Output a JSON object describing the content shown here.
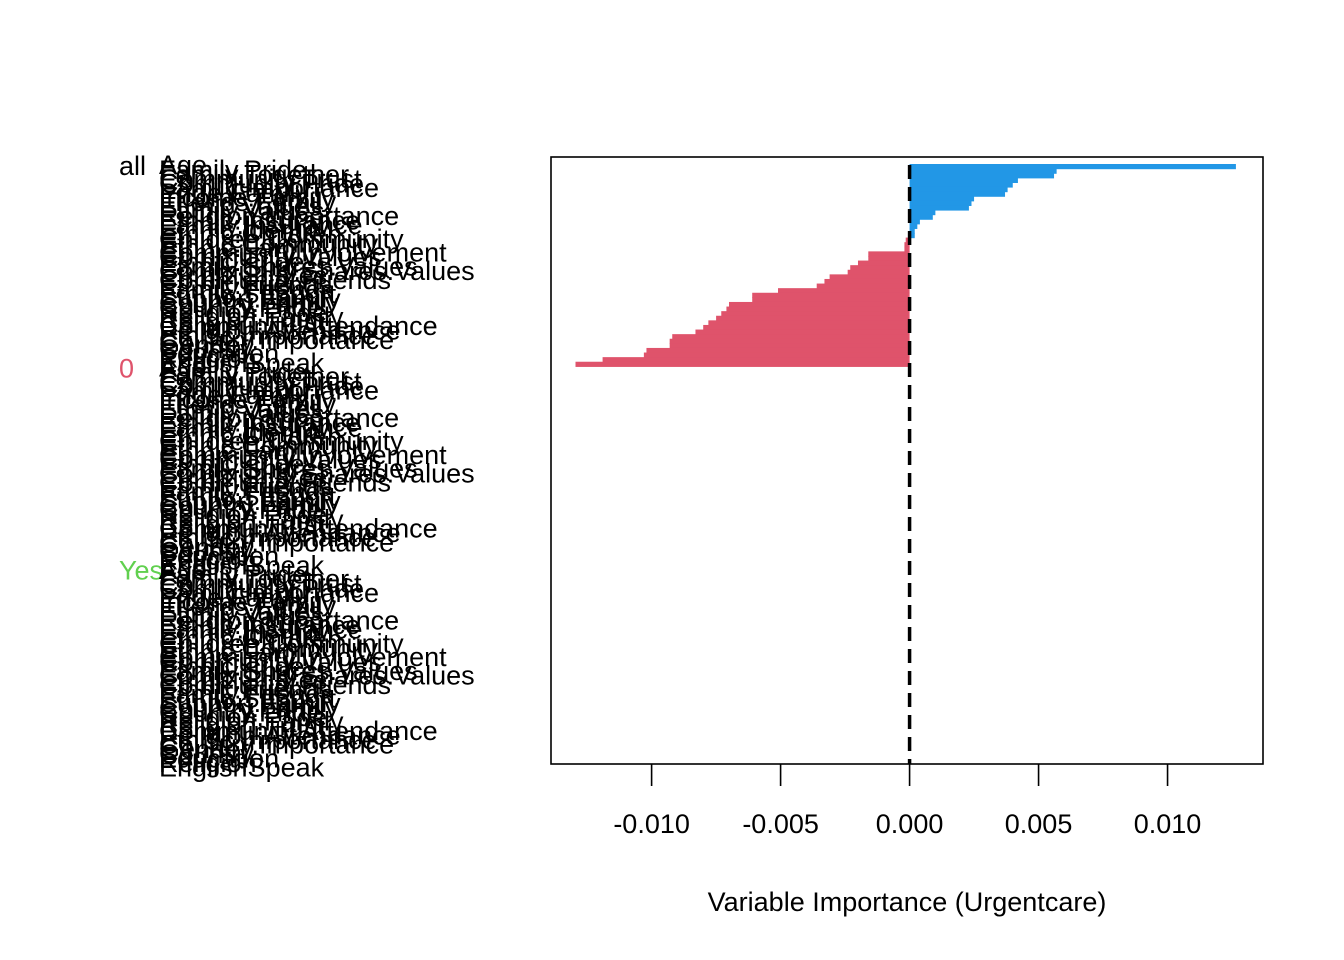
{
  "chart_data": {
    "type": "bar",
    "orientation": "horizontal",
    "xlabel": "Variable Importance (Urgentcare)",
    "xlim": [
      -0.0139,
      0.0137
    ],
    "xticks": [
      -0.01,
      -0.005,
      0.0,
      0.005,
      0.01
    ],
    "xtick_labels": [
      "-0.010",
      "-0.005",
      "0.000",
      "0.005",
      "0.010"
    ],
    "reference_line": 0.0,
    "colors": {
      "positive": "#2297E6",
      "negative": "#DF536B",
      "group_all": "#000000",
      "group_0": "#DF536B",
      "group_yes": "#61D04F",
      "refline": "#000000"
    },
    "variables": [
      "Age",
      "Family.Pride",
      "Family.Together",
      "Community.Trust",
      "Community.Pride",
      "Family.Importance",
      "Pride.Family",
      "Income.Family",
      "Friends.Family",
      "Ethnic.Values",
      "Family.Values",
      "Religion.Importance",
      "Ethnic.Insurance",
      "Family.Insurance",
      "Ethnic.Identity",
      "Ethnic.Children",
      "Children.Community",
      "Ethnic.Community",
      "Ethnic.Family",
      "Community.Involvement",
      "Community.Values",
      "Ethnic.Pride",
      "Family.Shares.Values",
      "Community.Shares.Values",
      "Ethnic.Shares",
      "Community.Friends",
      "Ethnic.Friends",
      "Family.Friends",
      "Ethnic.Support",
      "Support.Family",
      "Country.Family",
      "Country.Pride",
      "Religion.Pride",
      "Religion.Family",
      "Religion.Trust",
      "Community.Attendance",
      "Religion.Attendance",
      "Ethnic.Importance",
      "Country.Importance",
      "Gender",
      "Country",
      "Education",
      "Religion",
      "EnglishSpeak"
    ],
    "groups": [
      {
        "name": "all",
        "values": [
          0.01265,
          0.0057,
          0.0056,
          0.0042,
          0.004,
          0.0038,
          0.0037,
          0.0025,
          0.0024,
          0.0023,
          0.001,
          0.0009,
          0.0004,
          0.0003,
          0.0002,
          0.0002,
          -0.00015,
          -0.0002,
          -0.0002,
          -0.0016,
          -0.0016,
          -0.002,
          -0.0023,
          -0.0024,
          -0.0031,
          -0.0033,
          -0.0036,
          -0.0051,
          -0.0061,
          -0.0061,
          -0.007,
          -0.0071,
          -0.0073,
          -0.0075,
          -0.0078,
          -0.008,
          -0.0083,
          -0.0092,
          -0.0093,
          -0.0093,
          -0.0102,
          -0.0103,
          -0.0119,
          -0.01295
        ]
      },
      {
        "name": "0",
        "values": null
      },
      {
        "name": "Yes",
        "values": null
      }
    ]
  }
}
